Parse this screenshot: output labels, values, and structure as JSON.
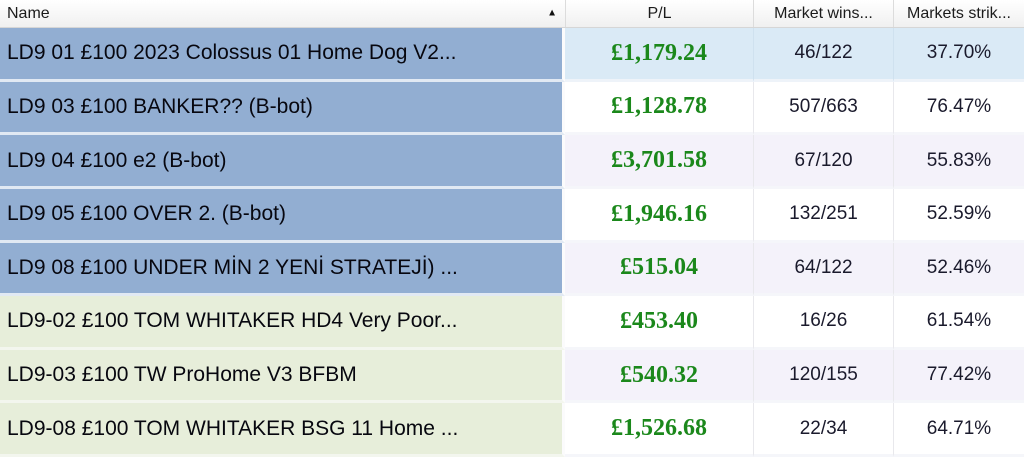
{
  "header": {
    "columns": [
      {
        "id": "name",
        "label": "Name"
      },
      {
        "id": "pl",
        "label": "P/L"
      },
      {
        "id": "market_wins",
        "label": "Market wins..."
      },
      {
        "id": "markets_strike",
        "label": "Markets strik..."
      }
    ],
    "sort": {
      "column": "Name",
      "direction": "ascending",
      "icon": "▲"
    }
  },
  "rows": [
    {
      "name": "LD9 01 £100 2023 Colossus 01 Home Dog V2...",
      "pl": "£1,179.24",
      "market_wins": "46/122",
      "markets_strike": "37.70%"
    },
    {
      "name": "LD9 03 £100 BANKER?? (B-bot)",
      "pl": "£1,128.78",
      "market_wins": "507/663",
      "markets_strike": "76.47%"
    },
    {
      "name": "LD9 04 £100 e2 (B-bot)",
      "pl": "£3,701.58",
      "market_wins": "67/120",
      "markets_strike": "55.83%"
    },
    {
      "name": "LD9 05 £100 OVER 2. (B-bot)",
      "pl": "£1,946.16",
      "market_wins": "132/251",
      "markets_strike": "52.59%"
    },
    {
      "name": "LD9 08 £100 UNDER MİN 2 YENİ STRATEJİ) ...",
      "pl": "£515.04",
      "market_wins": "64/122",
      "markets_strike": "52.46%"
    },
    {
      "name": "LD9-02 £100 TOM WHITAKER HD4 Very Poor...",
      "pl": "£453.40",
      "market_wins": "16/26",
      "markets_strike": "61.54%"
    },
    {
      "name": "LD9-03 £100 TW ProHome V3 BFBM",
      "pl": "£540.32",
      "market_wins": "120/155",
      "markets_strike": "77.42%"
    },
    {
      "name": "LD9-08 £100 TOM WHITAKER BSG 11 Home ...",
      "pl": "£1,526.68",
      "market_wins": "22/34",
      "markets_strike": "64.71%"
    }
  ],
  "colors": {
    "pl_positive": "#1b881b",
    "name_cell_blue": "#92aed2",
    "name_cell_green": "#e7eeda",
    "row_highlight_blue": "#daeaf6",
    "row_alt_lavender": "#f4f2fa",
    "row_white": "#ffffff"
  }
}
